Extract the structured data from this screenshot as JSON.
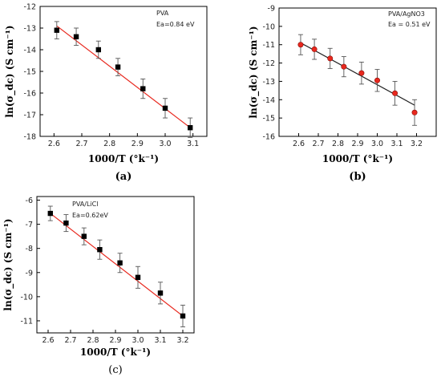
{
  "chart_data": [
    {
      "id": "a",
      "type": "scatter",
      "panel_label": "(a)",
      "xlabel": "1000/T (°k⁻¹)",
      "ylabel": "ln(σ_dc) (S cm⁻¹)",
      "xlim": [
        2.55,
        3.15
      ],
      "ylim": [
        -18,
        -12
      ],
      "xticks": [
        2.6,
        2.7,
        2.8,
        2.9,
        3.0,
        3.1
      ],
      "yticks": [
        -12,
        -13,
        -14,
        -15,
        -16,
        -17,
        -18
      ],
      "xtick_labels": [
        "2.6",
        "2.7",
        "2.8",
        "2.9",
        "3.0",
        "3.1"
      ],
      "ytick_labels": [
        "-12",
        "-13",
        "-14",
        "-15",
        "-16",
        "-17",
        "-18"
      ],
      "annotations": [
        "PVA",
        "Ea=0.84 eV"
      ],
      "annotation_position": "top-right",
      "marker": "square",
      "marker_color": "#000000",
      "line_color": "#e8281e",
      "x": [
        2.61,
        2.68,
        2.76,
        2.83,
        2.92,
        3.0,
        3.09
      ],
      "y": [
        -13.1,
        -13.4,
        -14.0,
        -14.8,
        -15.8,
        -16.7,
        -17.6
      ],
      "err": [
        0.4,
        0.4,
        0.4,
        0.4,
        0.45,
        0.45,
        0.45
      ],
      "fit": [
        [
          2.61,
          -12.9
        ],
        [
          3.09,
          -17.6
        ]
      ]
    },
    {
      "id": "b",
      "type": "scatter",
      "panel_label": "(b)",
      "xlabel": "1000/T (°k⁻¹)",
      "ylabel": "ln(σ_dc) (S cm⁻¹)",
      "xlim": [
        2.5,
        3.3
      ],
      "ylim": [
        -16,
        -9
      ],
      "xticks": [
        2.6,
        2.7,
        2.8,
        2.9,
        3.0,
        3.1,
        3.2
      ],
      "yticks": [
        -9,
        -10,
        -11,
        -12,
        -13,
        -14,
        -15,
        -16
      ],
      "xtick_labels": [
        "2.6",
        "2.7",
        "2.8",
        "2.9",
        "3.0",
        "3.1",
        "3.2"
      ],
      "ytick_labels": [
        "-9",
        "-10",
        "-11",
        "-12",
        "-13",
        "-14",
        "-15",
        "-16"
      ],
      "annotations": [
        "PVA/AgNO3",
        "Ea = 0.51 eV"
      ],
      "annotation_position": "top-right",
      "marker": "circle",
      "marker_color": "#e8281e",
      "line_color": "#222222",
      "x": [
        2.61,
        2.68,
        2.76,
        2.83,
        2.92,
        3.0,
        3.09,
        3.19
      ],
      "y": [
        -11.0,
        -11.25,
        -11.75,
        -12.2,
        -12.55,
        -12.95,
        -13.65,
        -14.7
      ],
      "err": [
        0.55,
        0.55,
        0.55,
        0.55,
        0.6,
        0.6,
        0.65,
        0.7
      ],
      "fit": [
        [
          2.61,
          -10.9
        ],
        [
          3.19,
          -14.3
        ]
      ]
    },
    {
      "id": "c",
      "type": "scatter",
      "panel_label": "(c)",
      "xlabel": "1000/T (°k⁻¹)",
      "ylabel": "ln(σ_dc) (S cm⁻¹)",
      "xlim": [
        2.55,
        3.25
      ],
      "ylim": [
        -11.5,
        -5.85
      ],
      "xticks": [
        2.6,
        2.7,
        2.8,
        2.9,
        3.0,
        3.1,
        3.2
      ],
      "yticks": [
        -6,
        -7,
        -8,
        -9,
        -10,
        -11
      ],
      "xtick_labels": [
        "2.6",
        "2.7",
        "2.8",
        "2.9",
        "3.0",
        "3.1",
        "3.2"
      ],
      "ytick_labels": [
        "-6",
        "-7",
        "-8",
        "-9",
        "-10",
        "-11"
      ],
      "annotations": [
        "PVA/LiCl",
        "Ea=0.62eV"
      ],
      "annotation_position": "top-left",
      "marker": "square",
      "marker_color": "#000000",
      "line_color": "#e8281e",
      "x": [
        2.61,
        2.68,
        2.76,
        2.83,
        2.92,
        3.0,
        3.1,
        3.2
      ],
      "y": [
        -6.55,
        -6.95,
        -7.5,
        -8.05,
        -8.6,
        -9.2,
        -9.85,
        -10.8
      ],
      "err": [
        0.3,
        0.35,
        0.35,
        0.4,
        0.4,
        0.45,
        0.45,
        0.45
      ],
      "fit": [
        [
          2.61,
          -6.55
        ],
        [
          3.2,
          -10.8
        ]
      ]
    }
  ]
}
